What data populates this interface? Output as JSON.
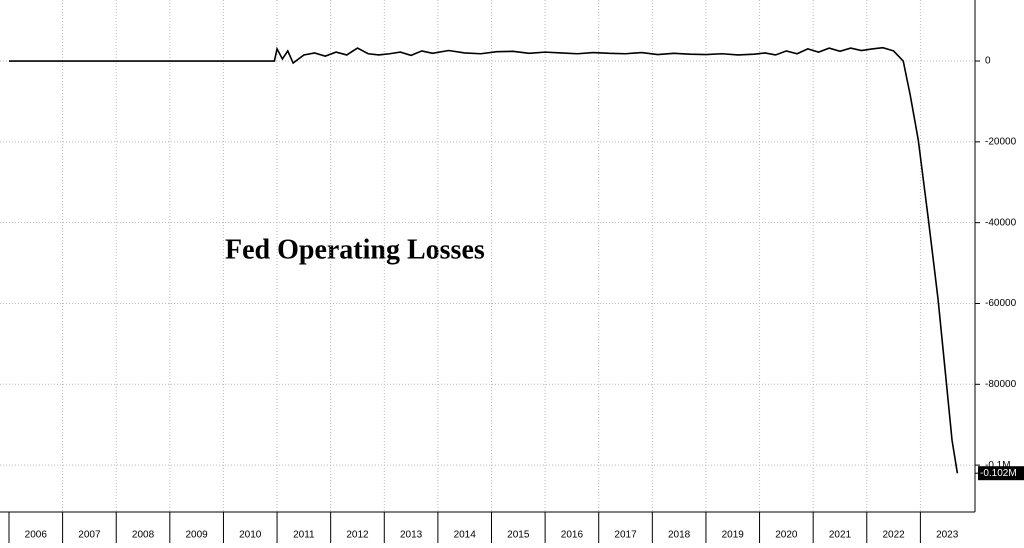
{
  "chart_data": {
    "type": "line",
    "annotation": "Fed Operating Losses",
    "categories": [
      "2006",
      "2007",
      "2008",
      "2009",
      "2010",
      "2011",
      "2012",
      "2013",
      "2014",
      "2015",
      "2016",
      "2017",
      "2018",
      "2019",
      "2020",
      "2021",
      "2022",
      "2023"
    ],
    "xlim": [
      2006,
      2024
    ],
    "ylim": [
      -111600,
      15100
    ],
    "yticks": [
      0,
      -20000,
      -40000,
      -60000,
      -80000,
      {
        "value": -100000,
        "label": "-0.1M"
      }
    ],
    "grid": true,
    "x": [
      2006,
      2010.95,
      2011.0,
      2011.1,
      2011.2,
      2011.3,
      2011.5,
      2011.7,
      2011.9,
      2012.1,
      2012.3,
      2012.5,
      2012.7,
      2012.9,
      2013.1,
      2013.3,
      2013.5,
      2013.7,
      2013.9,
      2014.2,
      2014.5,
      2014.8,
      2015.1,
      2015.4,
      2015.7,
      2016.0,
      2016.3,
      2016.6,
      2016.9,
      2017.2,
      2017.5,
      2017.8,
      2018.1,
      2018.4,
      2018.7,
      2019.0,
      2019.3,
      2019.6,
      2019.9,
      2020.1,
      2020.3,
      2020.5,
      2020.7,
      2020.9,
      2021.1,
      2021.3,
      2021.5,
      2021.7,
      2021.9,
      2022.1,
      2022.3,
      2022.5,
      2022.68,
      2022.81,
      2022.96,
      2023.15,
      2023.33,
      2023.48,
      2023.59,
      2023.69
    ],
    "series": [
      {
        "color": "#000000",
        "values": [
          0,
          0,
          3000,
          500,
          2500,
          -500,
          1500,
          2000,
          1200,
          2200,
          1500,
          3200,
          1800,
          1500,
          1800,
          2200,
          1400,
          2500,
          1900,
          2600,
          2000,
          1800,
          2300,
          2400,
          1900,
          2200,
          2000,
          1800,
          2100,
          1900,
          1800,
          2100,
          1600,
          1900,
          1700,
          1600,
          1800,
          1500,
          1700,
          2000,
          1500,
          2500,
          1800,
          3000,
          2200,
          3200,
          2400,
          3200,
          2600,
          3000,
          3300,
          2500,
          0,
          -8400,
          -19500,
          -39300,
          -59000,
          -79000,
          -93800,
          -102000
        ],
        "value_labels": [
          null,
          null,
          null,
          null,
          null,
          null,
          null,
          null,
          null,
          null,
          null,
          null,
          null,
          null,
          null,
          null,
          null,
          null,
          null,
          null,
          null,
          null,
          null,
          null,
          null,
          null,
          null,
          null,
          null,
          null,
          null,
          null,
          null,
          null,
          null,
          null,
          null,
          null,
          null,
          null,
          null,
          null,
          null,
          null,
          null,
          null,
          null,
          null,
          null,
          null,
          null,
          null,
          null,
          null,
          null,
          null,
          null,
          null,
          null,
          "-0.102M"
        ]
      }
    ]
  }
}
